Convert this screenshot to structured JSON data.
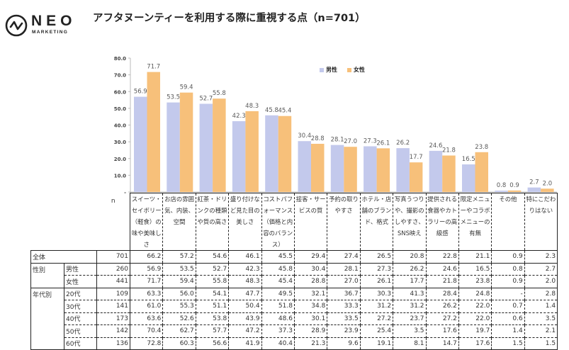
{
  "logo": {
    "brand": "NEO",
    "sub": "MARKETING",
    "icon": "pulse-circle-icon"
  },
  "title": "アフタヌーンティーを利用する際に重視する点（n=701）",
  "legend": [
    {
      "name": "男性",
      "color": "#C3C9EC"
    },
    {
      "name": "女性",
      "color": "#F7C07A"
    }
  ],
  "chart_data": {
    "type": "bar",
    "title": "アフタヌーンティーを利用する際に重視する点（n=701）",
    "xlabel": "",
    "ylabel": "",
    "ylim": [
      0,
      80
    ],
    "yticks": [
      "-",
      "10.0",
      "20.0",
      "30.0",
      "40.0",
      "50.0",
      "60.0",
      "70.0",
      "80.0"
    ],
    "legend_position": "top-right",
    "categories": [
      "スイーツ・セイボリー（軽食）の味や美味しさ",
      "お店の雰囲気、内装、空間",
      "紅茶・ドリンクの種類や質の高さ",
      "盛り付けなど見た目の美しさ",
      "コストパフォーマンス（価格と内容のバランス）",
      "接客・サービスの質",
      "予約の取りやすさ",
      "ホテル・店舗のブランド、格式",
      "写真うつりや、撮影のしやすさ、SNS映え",
      "提供される食器やカトラリーの高級感",
      "限定メニューやコラボメニューの有無",
      "その他",
      "特にこだわりはない"
    ],
    "series": [
      {
        "name": "男性",
        "values": [
          56.9,
          53.5,
          52.7,
          42.3,
          45.8,
          30.4,
          28.1,
          27.3,
          26.2,
          24.6,
          16.5,
          0.8,
          2.7
        ]
      },
      {
        "name": "女性",
        "values": [
          71.7,
          59.4,
          55.8,
          48.3,
          45.4,
          28.8,
          27.0,
          26.1,
          17.7,
          21.8,
          23.8,
          0.9,
          2.0
        ]
      }
    ],
    "data_labels": {
      "男性": [
        "56.9",
        "53.5",
        "52.7",
        "42.3",
        "45.8",
        "30.4",
        "28.1",
        "27.3",
        "26.2",
        "24.6",
        "16.5",
        "0.8",
        "2.7"
      ],
      "女性": [
        "71.7",
        "59.4",
        "55.8",
        "48.3",
        "45.4",
        "28.8",
        "27.0",
        "26.1",
        "17.7",
        "21.8",
        "23.8",
        "0.9",
        "2.0"
      ]
    }
  },
  "table": {
    "n_header": "n",
    "headers": [
      "スイーツ・セイボリー（軽食）の味や美味しさ",
      "お店の雰囲気、内装、空間",
      "紅茶・ドリンクの種類や質の高さ",
      "盛り付けなど見た目の美しさ",
      "コストパフォーマンス（価格と内容のバランス）",
      "接客・サービスの質",
      "予約の取りやすさ",
      "ホテル・店舗のブランド、格式",
      "写真うつりや、撮影のしやすさ、SNS映え",
      "提供される食器やカトラリーの高級感",
      "限定メニューやコラボメニューの有無",
      "その他",
      "特にこだわりはない"
    ],
    "rows": [
      {
        "group": "全体",
        "sub": "",
        "n": "701",
        "values": [
          "66.2",
          "57.2",
          "54.6",
          "46.1",
          "45.5",
          "29.4",
          "27.4",
          "26.5",
          "20.8",
          "22.8",
          "21.1",
          "0.9",
          "2.3"
        ]
      },
      {
        "group": "性別",
        "sub": "男性",
        "n": "260",
        "values": [
          "56.9",
          "53.5",
          "52.7",
          "42.3",
          "45.8",
          "30.4",
          "28.1",
          "27.3",
          "26.2",
          "24.6",
          "16.5",
          "0.8",
          "2.7"
        ]
      },
      {
        "group": "",
        "sub": "女性",
        "n": "441",
        "values": [
          "71.7",
          "59.4",
          "55.8",
          "48.3",
          "45.4",
          "28.8",
          "27.0",
          "26.1",
          "17.7",
          "21.8",
          "23.8",
          "0.9",
          "2.0"
        ]
      },
      {
        "group": "年代別",
        "sub": "20代",
        "n": "109",
        "values": [
          "63.3",
          "56.0",
          "54.1",
          "47.7",
          "49.5",
          "32.1",
          "36.7",
          "30.3",
          "41.3",
          "28.4",
          "24.8",
          "-",
          "2.8"
        ]
      },
      {
        "group": "",
        "sub": "30代",
        "n": "141",
        "values": [
          "61.0",
          "55.3",
          "51.1",
          "50.4",
          "51.8",
          "34.8",
          "33.3",
          "31.2",
          "31.2",
          "26.2",
          "22.0",
          "0.7",
          "1.4"
        ]
      },
      {
        "group": "",
        "sub": "40代",
        "n": "173",
        "values": [
          "63.6",
          "52.6",
          "53.8",
          "43.9",
          "48.6",
          "30.1",
          "33.5",
          "27.2",
          "23.7",
          "27.2",
          "22.0",
          "0.6",
          "3.5"
        ]
      },
      {
        "group": "",
        "sub": "50代",
        "n": "142",
        "values": [
          "70.4",
          "62.7",
          "57.7",
          "47.2",
          "37.3",
          "28.9",
          "23.9",
          "25.4",
          "3.5",
          "17.6",
          "19.7",
          "1.4",
          "2.1"
        ]
      },
      {
        "group": "",
        "sub": "60代",
        "n": "136",
        "values": [
          "72.8",
          "60.3",
          "56.6",
          "41.9",
          "40.4",
          "21.3",
          "9.6",
          "19.1",
          "8.1",
          "14.7",
          "17.6",
          "1.5",
          "1.5"
        ]
      }
    ]
  }
}
